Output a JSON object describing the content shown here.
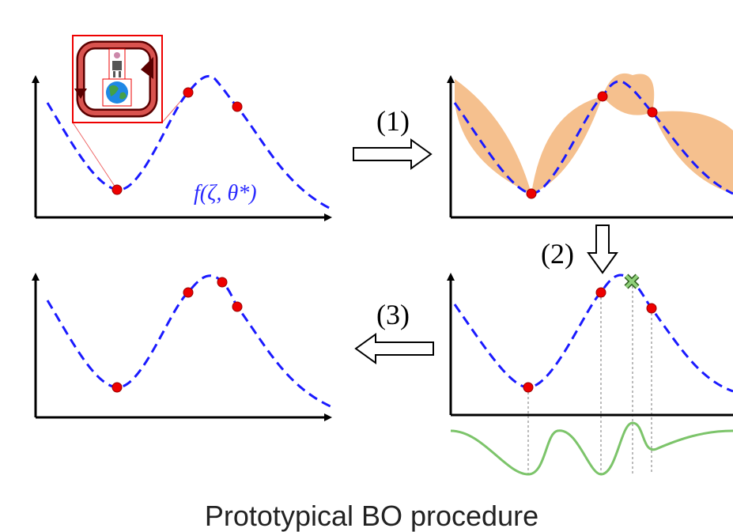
{
  "function_label": "f(ζ, θ*)",
  "steps": [
    "(1)",
    "(2)",
    "(3)"
  ],
  "caption": "Prototypical BO procedure"
}
